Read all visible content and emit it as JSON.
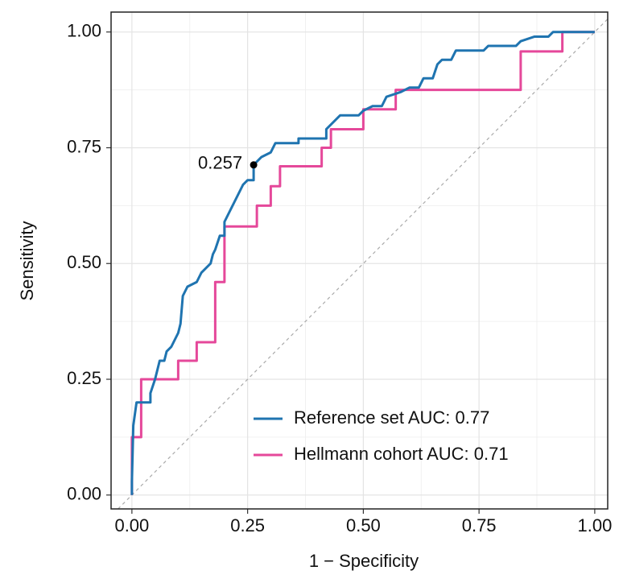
{
  "chart_data": {
    "type": "line",
    "x_label": "1 − Specificity",
    "y_label": "Sensitivity",
    "xlim": [
      -0.045,
      1.028
    ],
    "ylim": [
      -0.03,
      1.043
    ],
    "xticks": [
      {
        "value": 0,
        "label": "0.00"
      },
      0.25,
      {
        "value": 0.5,
        "label": "0.50"
      },
      0.75,
      {
        "value": 1,
        "label": "1.00"
      }
    ],
    "yticks": [
      {
        "value": 0,
        "label": "0.00"
      },
      0.25,
      {
        "value": 0.5,
        "label": "0.50"
      },
      0.75,
      {
        "value": 1,
        "label": "1.00"
      }
    ],
    "grid": true,
    "legend_position": "bottom-right",
    "series": [
      {
        "name": "Reference set AUC:  0.77",
        "color": "#1f74b0",
        "x": [
          0,
          0,
          0.003,
          0.01,
          0.04,
          0.04,
          0.05,
          0.06,
          0.07,
          0.075,
          0.085,
          0.09,
          0.1,
          0.105,
          0.11,
          0.12,
          0.14,
          0.15,
          0.16,
          0.17,
          0.175,
          0.18,
          0.19,
          0.2,
          0.2,
          0.21,
          0.22,
          0.23,
          0.24,
          0.25,
          0.263,
          0.263,
          0.28,
          0.3,
          0.31,
          0.36,
          0.36,
          0.42,
          0.42,
          0.44,
          0.45,
          0.49,
          0.5,
          0.52,
          0.54,
          0.55,
          0.58,
          0.6,
          0.62,
          0.63,
          0.65,
          0.66,
          0.67,
          0.69,
          0.7,
          0.76,
          0.77,
          0.83,
          0.84,
          0.87,
          0.9,
          0.91,
          1
        ],
        "values": [
          0,
          0.03,
          0.15,
          0.2,
          0.2,
          0.22,
          0.25,
          0.29,
          0.29,
          0.31,
          0.32,
          0.33,
          0.35,
          0.37,
          0.43,
          0.45,
          0.46,
          0.48,
          0.49,
          0.5,
          0.52,
          0.53,
          0.56,
          0.56,
          0.59,
          0.61,
          0.63,
          0.65,
          0.67,
          0.68,
          0.68,
          0.713,
          0.73,
          0.74,
          0.76,
          0.76,
          0.77,
          0.77,
          0.79,
          0.81,
          0.82,
          0.82,
          0.83,
          0.84,
          0.84,
          0.86,
          0.87,
          0.88,
          0.88,
          0.9,
          0.9,
          0.93,
          0.94,
          0.94,
          0.96,
          0.96,
          0.97,
          0.97,
          0.98,
          0.99,
          0.99,
          1,
          1
        ]
      },
      {
        "name": "Hellmann cohort AUC:  0.71",
        "color": "#e5489a",
        "x": [
          0,
          0,
          0.02,
          0.02,
          0.1,
          0.1,
          0.14,
          0.14,
          0.18,
          0.18,
          0.2,
          0.2,
          0.27,
          0.27,
          0.3,
          0.3,
          0.32,
          0.32,
          0.41,
          0.41,
          0.43,
          0.43,
          0.5,
          0.5,
          0.57,
          0.57,
          0.84,
          0.84,
          0.93,
          0.93,
          1
        ],
        "values": [
          0,
          0.125,
          0.125,
          0.25,
          0.25,
          0.29,
          0.29,
          0.33,
          0.33,
          0.46,
          0.46,
          0.58,
          0.58,
          0.625,
          0.625,
          0.667,
          0.667,
          0.71,
          0.71,
          0.75,
          0.75,
          0.79,
          0.79,
          0.833,
          0.833,
          0.875,
          0.875,
          0.958,
          0.958,
          1,
          1
        ]
      }
    ],
    "annotations": [
      {
        "label": "0.257",
        "x": 0.263,
        "y": 0.713
      }
    ]
  }
}
